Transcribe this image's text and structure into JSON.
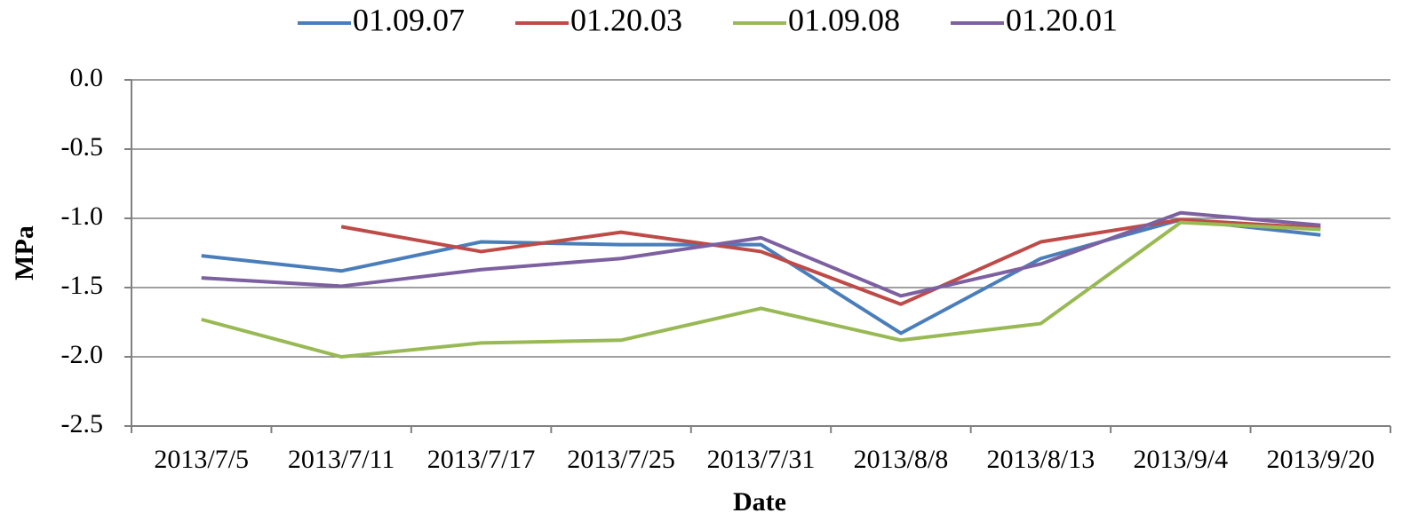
{
  "chart_data": {
    "type": "line",
    "x_label": "Date",
    "y_label": "MPa",
    "categories": [
      "2013/7/5",
      "2013/7/11",
      "2013/7/17",
      "2013/7/25",
      "2013/7/31",
      "2013/8/8",
      "2013/8/13",
      "2013/9/4",
      "2013/9/20"
    ],
    "series": [
      {
        "name": "01.09.07",
        "color": "#4a7ebb",
        "values": [
          -1.27,
          -1.38,
          -1.17,
          -1.19,
          -1.19,
          -1.83,
          -1.29,
          -1.01,
          -1.12
        ]
      },
      {
        "name": "01.20.03",
        "color": "#be4b48",
        "values": [
          null,
          -1.06,
          -1.24,
          -1.1,
          -1.24,
          -1.62,
          -1.17,
          -1.01,
          -1.07
        ]
      },
      {
        "name": "01.09.08",
        "color": "#98b954",
        "values": [
          -1.73,
          -2.0,
          -1.9,
          -1.88,
          -1.65,
          -1.88,
          -1.76,
          -1.03,
          -1.08
        ]
      },
      {
        "name": "01.20.01",
        "color": "#7d60a0",
        "values": [
          -1.43,
          -1.49,
          -1.37,
          -1.29,
          -1.14,
          -1.56,
          -1.33,
          -0.96,
          -1.05
        ]
      }
    ],
    "ylim": [
      -2.5,
      0
    ],
    "yticks": [
      {
        "value": 0,
        "label": "0.0"
      },
      {
        "value": -0.5,
        "label": "-0.5"
      },
      {
        "value": -1,
        "label": "-1.0"
      },
      -1.5,
      {
        "value": -2,
        "label": "-2.0"
      },
      -2.5
    ],
    "grid": true,
    "legend": "top"
  }
}
